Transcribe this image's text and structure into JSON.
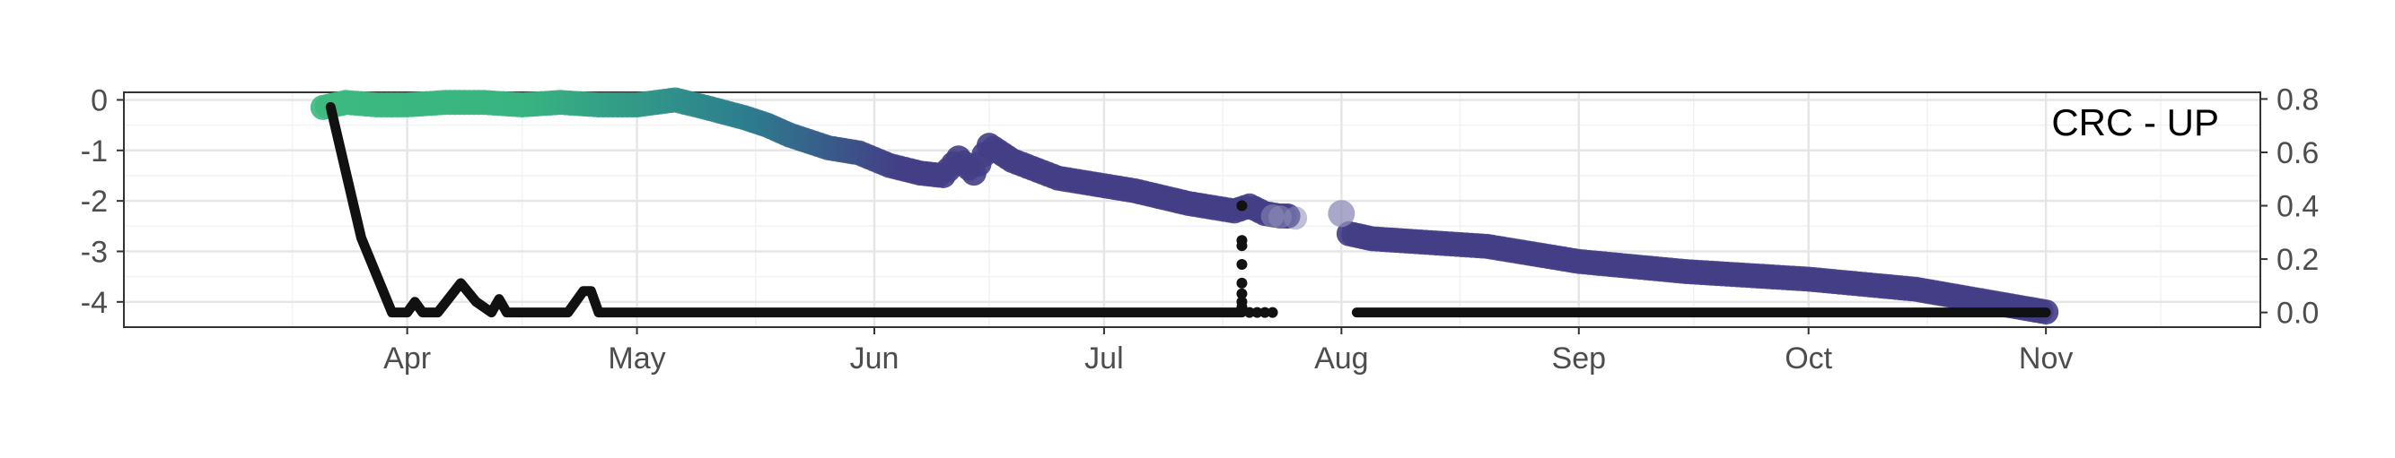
{
  "chart_data": {
    "type": "line",
    "panel_label": "CRC - UP",
    "x_axis": {
      "ticks": [
        "Apr",
        "May",
        "Jun",
        "Jul",
        "Aug",
        "Sep",
        "Oct",
        "Nov"
      ],
      "tick_dates": [
        "2021-04-01",
        "2021-05-01",
        "2021-06-01",
        "2021-07-01",
        "2021-08-01",
        "2021-09-01",
        "2021-10-01",
        "2021-11-01"
      ],
      "range": [
        "2021-02-23",
        "2021-11-29"
      ]
    },
    "y_left": {
      "ticks": [
        0,
        -1,
        -2,
        -3,
        -4
      ],
      "range": [
        -4.5,
        0.15
      ]
    },
    "y_right": {
      "ticks": [
        0.8,
        0.6,
        0.4,
        0.2,
        0.0
      ],
      "range": [
        -0.055,
        0.825
      ]
    },
    "grid": true,
    "series": [
      {
        "axis": "left",
        "style": "thick colored points (green to purple gradient)",
        "colors": {
          "start": "#3dbb7f",
          "middle": "#2c7f8e",
          "end": "#433e86"
        },
        "x": [
          "2021-03-21",
          "2021-03-24",
          "2021-03-28",
          "2021-04-01",
          "2021-04-06",
          "2021-04-11",
          "2021-04-16",
          "2021-04-21",
          "2021-04-26",
          "2021-05-01",
          "2021-05-06",
          "2021-05-10",
          "2021-05-15",
          "2021-05-18",
          "2021-05-21",
          "2021-05-26",
          "2021-05-30",
          "2021-06-03",
          "2021-06-07",
          "2021-06-10",
          "2021-06-12",
          "2021-06-14",
          "2021-06-16",
          "2021-06-19",
          "2021-06-25",
          "2021-07-05",
          "2021-07-12",
          "2021-07-18",
          "2021-07-20",
          "2021-07-22",
          "2021-07-24",
          "2021-07-25"
        ],
        "y": [
          -0.15,
          -0.05,
          -0.1,
          -0.1,
          -0.05,
          -0.05,
          -0.1,
          -0.05,
          -0.1,
          -0.1,
          0.0,
          -0.15,
          -0.35,
          -0.5,
          -0.7,
          -0.95,
          -1.05,
          -1.3,
          -1.45,
          -1.5,
          -1.15,
          -1.45,
          -0.9,
          -1.2,
          -1.55,
          -1.8,
          -2.05,
          -2.2,
          -2.1,
          -2.25,
          -2.3,
          -2.3
        ]
      },
      {
        "axis": "left",
        "style": "thick colored points (green to purple gradient)",
        "colors": {
          "start": "#3dbb7f",
          "middle": "#2c7f8e",
          "end": "#433e86"
        },
        "x": [
          "2021-08-02",
          "2021-08-05",
          "2021-08-10",
          "2021-08-20",
          "2021-09-01",
          "2021-09-15",
          "2021-10-01",
          "2021-10-15",
          "2021-11-01"
        ],
        "y": [
          -2.65,
          -2.75,
          -2.8,
          -2.9,
          -3.2,
          -3.4,
          -3.55,
          -3.75,
          -4.2
        ]
      },
      {
        "axis": "left",
        "style": "isolated faded points",
        "color": "#8e8bb8",
        "x": [
          "2021-08-01"
        ],
        "y": [
          -2.25
        ]
      },
      {
        "axis": "right",
        "style": "black line",
        "color": "#111111",
        "x": [
          "2021-03-22",
          "2021-03-26",
          "2021-03-30",
          "2021-04-01",
          "2021-04-02",
          "2021-04-03",
          "2021-04-05",
          "2021-04-08",
          "2021-04-10",
          "2021-04-12",
          "2021-04-13",
          "2021-04-14",
          "2021-04-16",
          "2021-04-22",
          "2021-04-24",
          "2021-04-25",
          "2021-04-26",
          "2021-07-19"
        ],
        "y": [
          0.77,
          0.28,
          0.0,
          0.0,
          0.04,
          0.0,
          0.0,
          0.11,
          0.04,
          0.0,
          0.05,
          0.0,
          0.0,
          0.0,
          0.08,
          0.08,
          0.0,
          0.0
        ]
      },
      {
        "axis": "right",
        "style": "black dots",
        "color": "#111111",
        "x": [
          "2021-07-19",
          "2021-07-19",
          "2021-07-19",
          "2021-07-19",
          "2021-07-19",
          "2021-07-19",
          "2021-07-19",
          "2021-07-19",
          "2021-07-20",
          "2021-07-21",
          "2021-07-22",
          "2021-07-23"
        ],
        "y": [
          0.4,
          0.27,
          0.25,
          0.18,
          0.11,
          0.07,
          0.04,
          0.02,
          0.0,
          0.0,
          0.0,
          0.0
        ]
      },
      {
        "axis": "right",
        "style": "black line",
        "color": "#111111",
        "x": [
          "2021-08-03",
          "2021-11-01"
        ],
        "y": [
          0.0,
          0.0
        ]
      }
    ]
  }
}
